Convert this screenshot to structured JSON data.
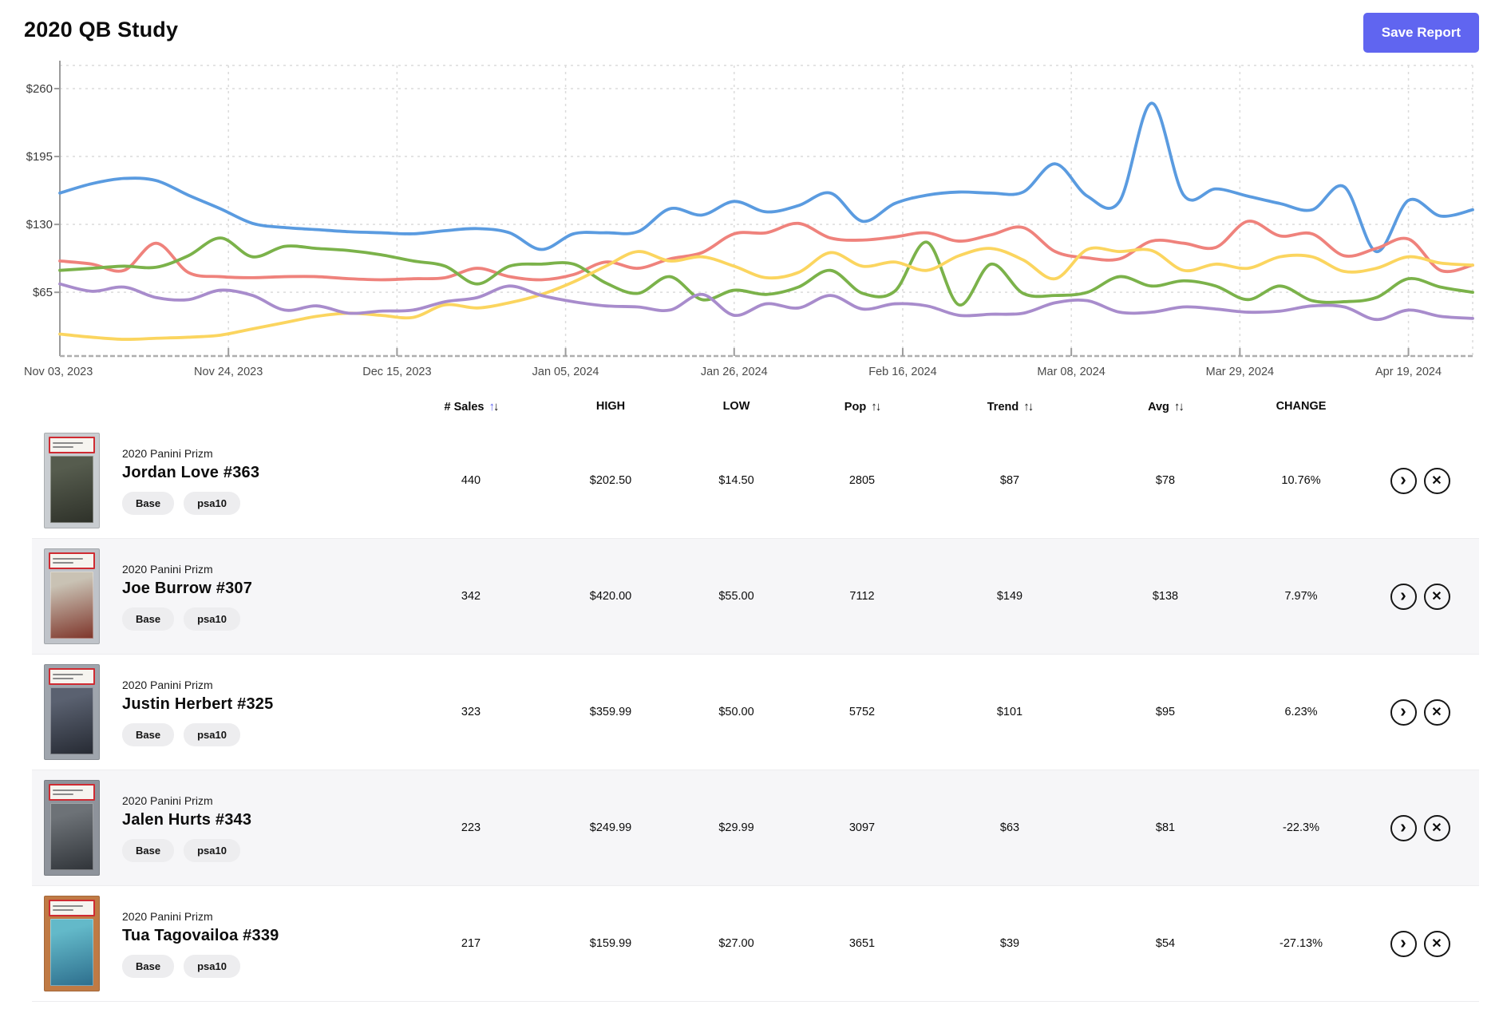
{
  "header": {
    "title": "2020 QB Study",
    "save_button": "Save Report",
    "accent_color": "#6065F0"
  },
  "icons": {
    "sort_up": "↑",
    "sort_down": "↓",
    "chevron_right": "›",
    "close": "✕"
  },
  "chart_data": {
    "type": "line",
    "title": "",
    "xlabel": "",
    "ylabel": "",
    "grid": true,
    "legend": "none",
    "x_ticks": [
      "Nov 03, 2023",
      "Nov 24, 2023",
      "Dec 15, 2023",
      "Jan 05, 2024",
      "Jan 26, 2024",
      "Feb 16, 2024",
      "Mar 08, 2024",
      "Mar 29, 2024",
      "Apr 19, 2024"
    ],
    "y_ticks": [
      "$260",
      "$195",
      "$130",
      "$65"
    ],
    "y_tick_values": [
      260,
      195,
      130,
      65
    ],
    "ylim": [
      4,
      282
    ],
    "points_per_series": 45,
    "days_per_point": 4,
    "series": [
      {
        "name": "blue",
        "color": "#5A9BE0",
        "values": [
          160,
          169,
          174,
          172,
          158,
          145,
          131,
          127,
          125,
          123,
          122,
          121,
          124,
          126,
          122,
          106,
          121,
          122,
          123,
          145,
          139,
          152,
          142,
          148,
          160,
          133,
          150,
          158,
          161,
          160,
          161,
          188,
          157,
          152,
          246,
          158,
          164,
          157,
          150,
          144,
          166,
          104,
          153,
          138,
          144
        ]
      },
      {
        "name": "salmon",
        "color": "#EF827C",
        "values": [
          95,
          92,
          86,
          112,
          84,
          80,
          79,
          80,
          80,
          78,
          77,
          78,
          79,
          88,
          80,
          77,
          82,
          94,
          88,
          97,
          103,
          121,
          122,
          131,
          117,
          115,
          118,
          122,
          114,
          120,
          127,
          104,
          98,
          97,
          114,
          112,
          108,
          133,
          119,
          121,
          100,
          107,
          116,
          86,
          91
        ]
      },
      {
        "name": "green",
        "color": "#7BB24A",
        "values": [
          86,
          88,
          90,
          89,
          100,
          117,
          99,
          109,
          107,
          105,
          101,
          95,
          90,
          73,
          90,
          92,
          92,
          74,
          64,
          80,
          58,
          67,
          63,
          70,
          86,
          64,
          66,
          113,
          53,
          92,
          64,
          62,
          65,
          80,
          71,
          76,
          71,
          58,
          71,
          57,
          56,
          60,
          78,
          70,
          65
        ]
      },
      {
        "name": "yellow",
        "color": "#FBD55F",
        "values": [
          25,
          22,
          20,
          21,
          22,
          24,
          30,
          36,
          42,
          45,
          43,
          41,
          53,
          50,
          55,
          63,
          75,
          90,
          104,
          95,
          99,
          90,
          79,
          84,
          103,
          90,
          94,
          86,
          100,
          107,
          96,
          78,
          106,
          104,
          105,
          86,
          92,
          88,
          99,
          99,
          85,
          88,
          99,
          93,
          91
        ]
      },
      {
        "name": "purple",
        "color": "#A88CCC",
        "values": [
          73,
          66,
          70,
          60,
          58,
          67,
          62,
          48,
          52,
          45,
          47,
          48,
          56,
          60,
          71,
          62,
          56,
          52,
          51,
          48,
          63,
          43,
          54,
          50,
          62,
          49,
          54,
          52,
          43,
          44,
          45,
          55,
          57,
          46,
          46,
          51,
          49,
          46,
          47,
          52,
          51,
          39,
          48,
          42,
          40
        ]
      }
    ]
  },
  "table": {
    "columns": [
      {
        "label": "# Sales",
        "sortable": true,
        "active_sort": "up"
      },
      {
        "label": "HIGH",
        "sortable": false
      },
      {
        "label": "LOW",
        "sortable": false
      },
      {
        "label": "Pop",
        "sortable": true
      },
      {
        "label": "Trend",
        "sortable": true
      },
      {
        "label": "Avg",
        "sortable": true
      },
      {
        "label": "CHANGE",
        "sortable": false
      }
    ],
    "rows": [
      {
        "set": "2020 Panini Prizm",
        "player": "Jordan Love #363",
        "tags": [
          "Base",
          "psa10"
        ],
        "sales": "440",
        "high": "$202.50",
        "low": "$14.50",
        "pop": "2805",
        "trend": "$87",
        "avg": "$78",
        "change": "10.76%",
        "thumb": {
          "bg": "#c9cdd1",
          "card1": "#565c4e",
          "card2": "#2e3129"
        }
      },
      {
        "set": "2020 Panini Prizm",
        "player": "Joe Burrow #307",
        "tags": [
          "Base",
          "psa10"
        ],
        "sales": "342",
        "high": "$420.00",
        "low": "$55.00",
        "pop": "7112",
        "trend": "$149",
        "avg": "$138",
        "change": "7.97%",
        "thumb": {
          "bg": "#bfc3c9",
          "card1": "#c9c2b4",
          "card2": "#7e352a"
        }
      },
      {
        "set": "2020 Panini Prizm",
        "player": "Justin Herbert #325",
        "tags": [
          "Base",
          "psa10"
        ],
        "sales": "323",
        "high": "$359.99",
        "low": "$50.00",
        "pop": "5752",
        "trend": "$101",
        "avg": "$95",
        "change": "6.23%",
        "thumb": {
          "bg": "#9fa5ad",
          "card1": "#5a6170",
          "card2": "#262a33"
        }
      },
      {
        "set": "2020 Panini Prizm",
        "player": "Jalen Hurts #343",
        "tags": [
          "Base",
          "psa10"
        ],
        "sales": "223",
        "high": "$249.99",
        "low": "$29.99",
        "pop": "3097",
        "trend": "$63",
        "avg": "$81",
        "change": "-22.3%",
        "thumb": {
          "bg": "#8e939b",
          "card1": "#6d7277",
          "card2": "#303439"
        }
      },
      {
        "set": "2020 Panini Prizm",
        "player": "Tua Tagovailoa #339",
        "tags": [
          "Base",
          "psa10"
        ],
        "sales": "217",
        "high": "$159.99",
        "low": "$27.00",
        "pop": "3651",
        "trend": "$39",
        "avg": "$54",
        "change": "-27.13%",
        "thumb": {
          "bg": "#c07a44",
          "card1": "#63b9c9",
          "card2": "#2d6e8d"
        }
      }
    ]
  }
}
